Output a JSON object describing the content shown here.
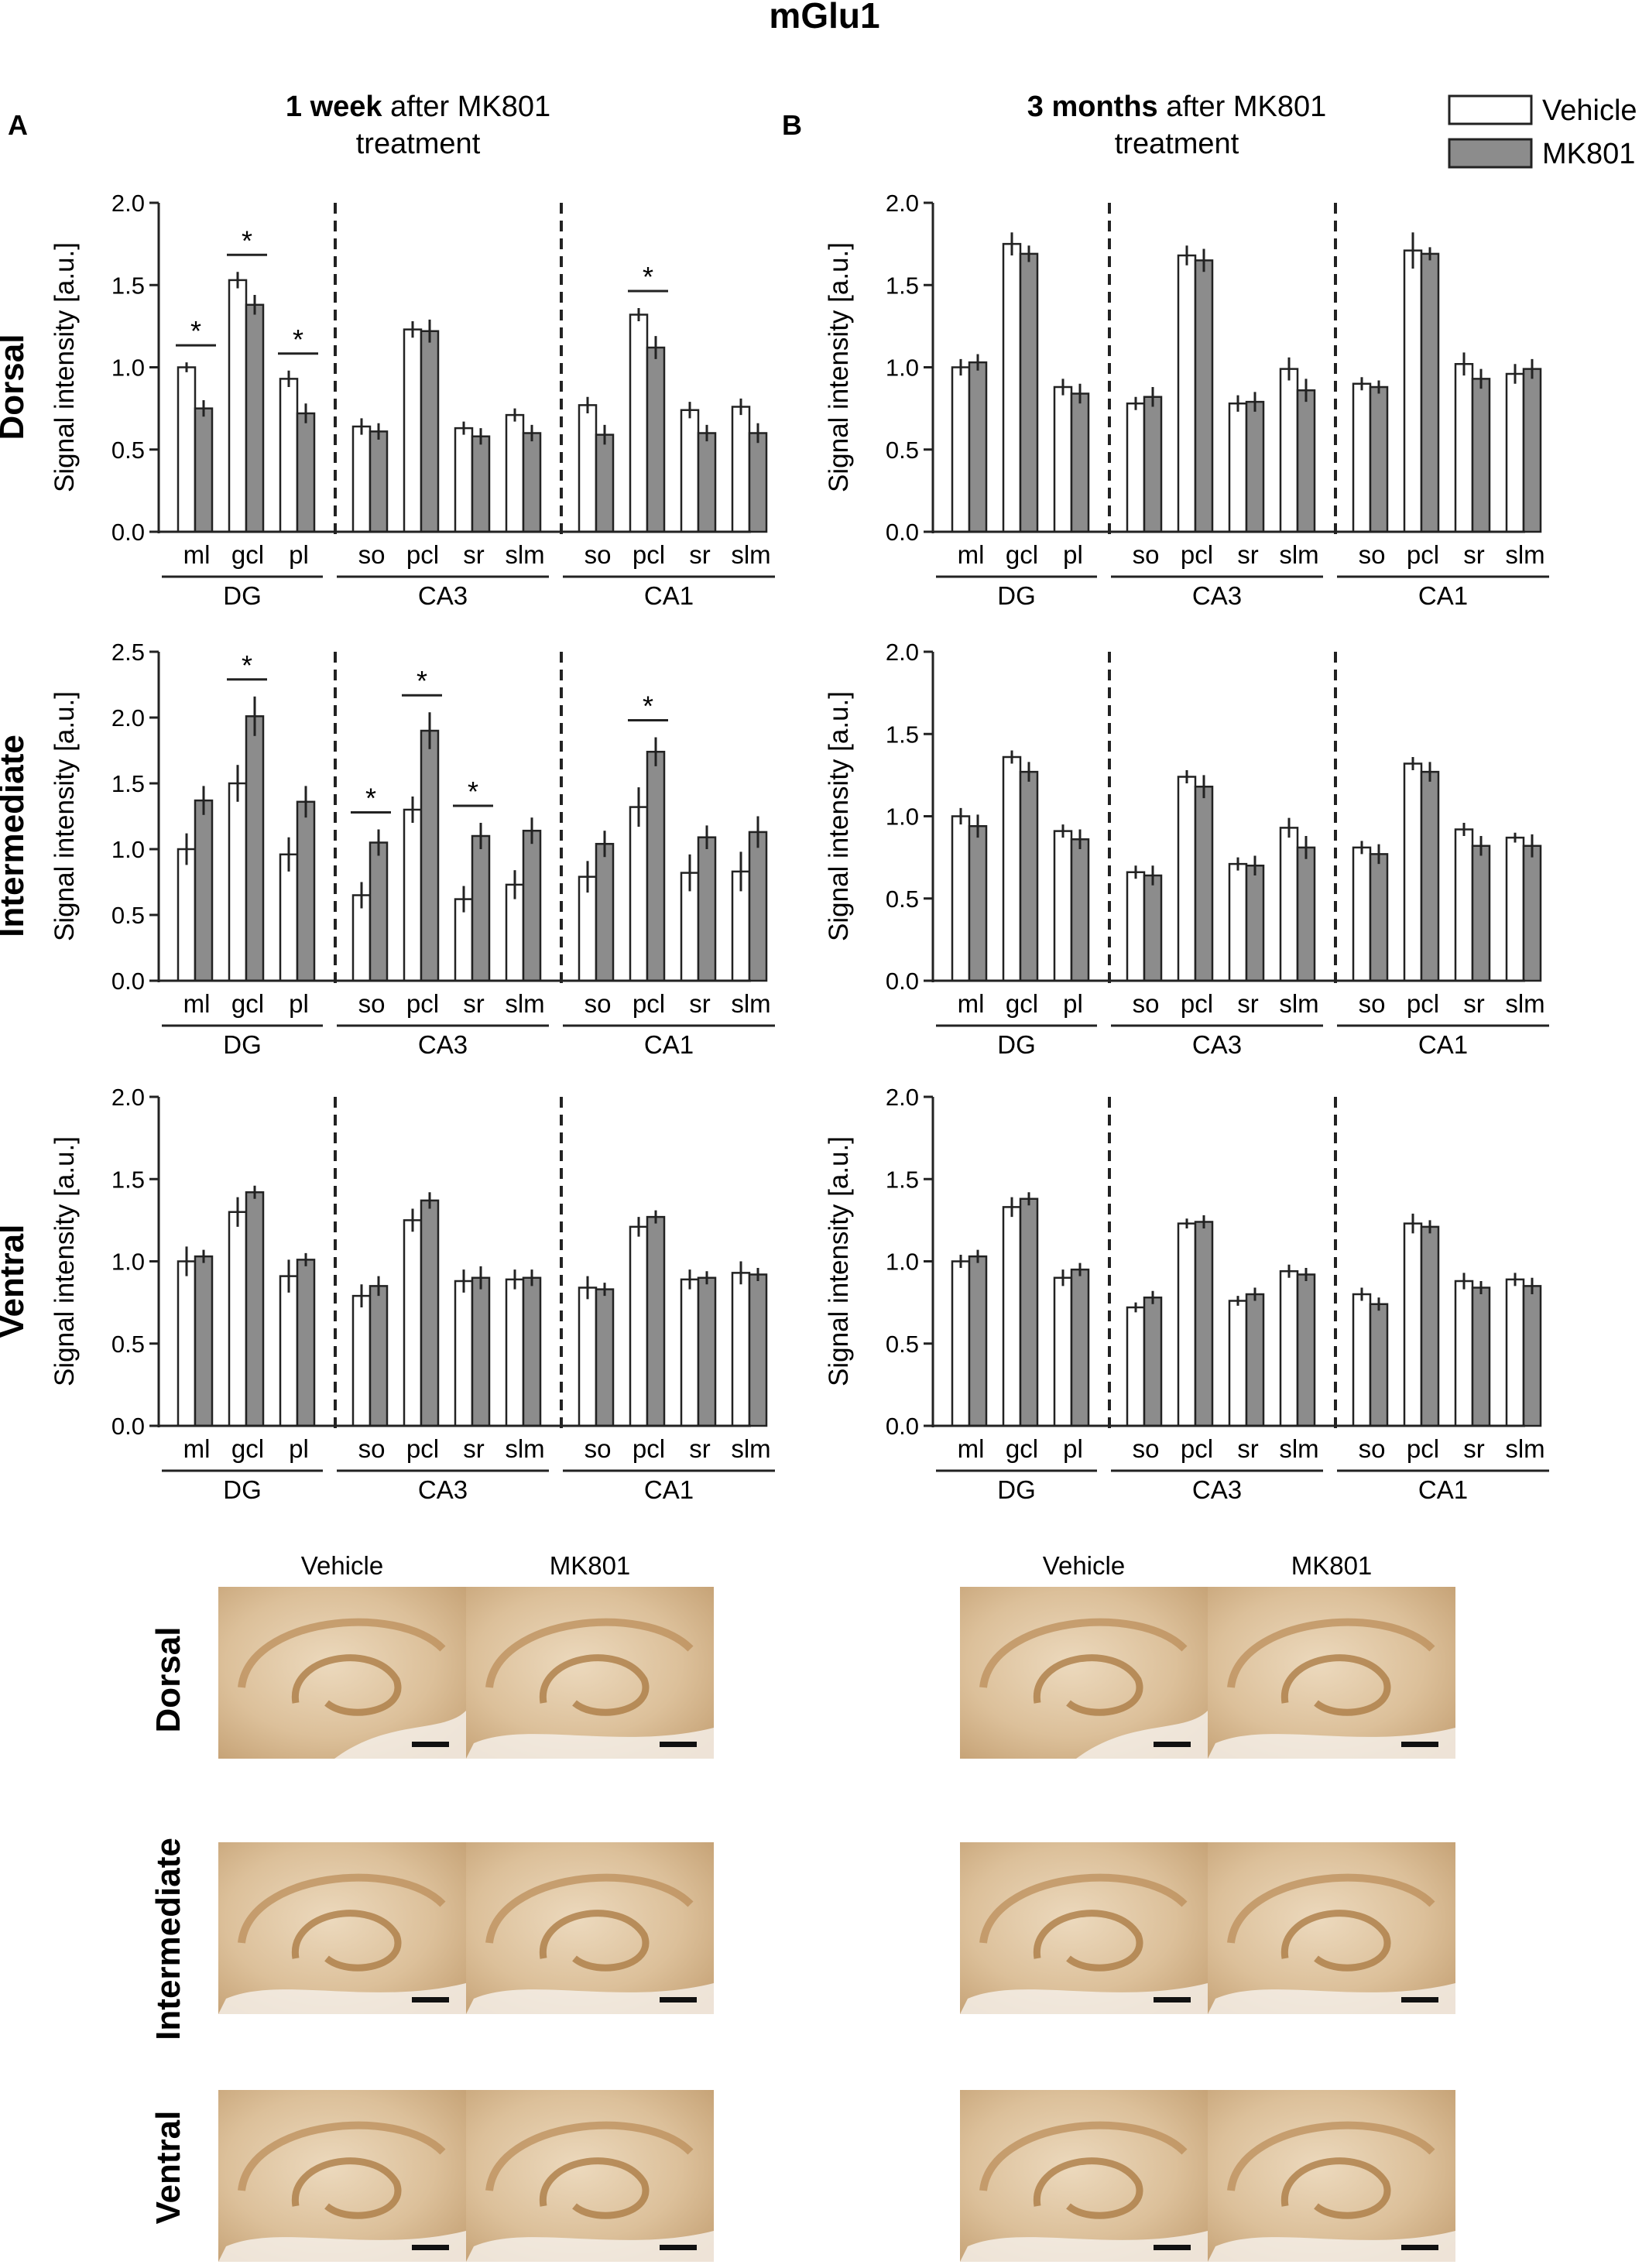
{
  "figure": {
    "title": "mGlu1",
    "panel_a": {
      "letter": "A",
      "title_bold": "1 week",
      "title_rest": " after MK801",
      "title_line2": "treatment"
    },
    "panel_b": {
      "letter": "B",
      "title_bold": "3 months",
      "title_rest": " after MK801",
      "title_line2": "treatment"
    },
    "legend": {
      "vehicle": "Vehicle",
      "mk801": "MK801"
    },
    "row_labels": [
      "Dorsal",
      "Intermediate",
      "Ventral"
    ],
    "images": {
      "vehicle_label": "Vehicle",
      "mk801_label": "MK801"
    },
    "colors": {
      "vehicle_fill": "#ffffff",
      "mk801_fill": "#8c8c8c",
      "stroke": "#222222",
      "tissue": "#d9b98f"
    }
  },
  "chart_data": [
    {
      "id": "A-dorsal",
      "type": "bar",
      "panel": "A",
      "row": "Dorsal",
      "ylabel": "Signal intensity [a.u.]",
      "ylim": [
        0,
        2.0
      ],
      "yticks": [
        "0.0",
        "0.5",
        "1.0",
        "1.5",
        "2.0"
      ],
      "groups": [
        {
          "name": "DG",
          "layers": [
            "ml",
            "gcl",
            "pl"
          ]
        },
        {
          "name": "CA3",
          "layers": [
            "so",
            "pcl",
            "sr",
            "slm"
          ]
        },
        {
          "name": "CA1",
          "layers": [
            "so",
            "pcl",
            "sr",
            "slm"
          ]
        }
      ],
      "series": [
        {
          "name": "Vehicle",
          "values": [
            1.0,
            1.53,
            0.93,
            0.64,
            1.23,
            0.63,
            0.71,
            0.77,
            1.32,
            0.74,
            0.76
          ],
          "errors": [
            0.03,
            0.05,
            0.05,
            0.05,
            0.05,
            0.04,
            0.04,
            0.05,
            0.04,
            0.05,
            0.05
          ]
        },
        {
          "name": "MK801",
          "values": [
            0.75,
            1.38,
            0.72,
            0.61,
            1.22,
            0.58,
            0.6,
            0.59,
            1.12,
            0.6,
            0.6
          ],
          "errors": [
            0.05,
            0.06,
            0.06,
            0.05,
            0.07,
            0.05,
            0.05,
            0.06,
            0.07,
            0.05,
            0.06
          ]
        }
      ],
      "significance": [
        {
          "index": 0,
          "label": "*"
        },
        {
          "index": 1,
          "label": "*"
        },
        {
          "index": 2,
          "label": "*"
        },
        {
          "index": 8,
          "label": "*"
        }
      ]
    },
    {
      "id": "A-intermediate",
      "type": "bar",
      "panel": "A",
      "row": "Intermediate",
      "ylabel": "Signal intensity [a.u.]",
      "ylim": [
        0,
        2.5
      ],
      "yticks": [
        "0.0",
        "0.5",
        "1.0",
        "1.5",
        "2.0",
        "2.5"
      ],
      "groups": [
        {
          "name": "DG",
          "layers": [
            "ml",
            "gcl",
            "pl"
          ]
        },
        {
          "name": "CA3",
          "layers": [
            "so",
            "pcl",
            "sr",
            "slm"
          ]
        },
        {
          "name": "CA1",
          "layers": [
            "so",
            "pcl",
            "sr",
            "slm"
          ]
        }
      ],
      "series": [
        {
          "name": "Vehicle",
          "values": [
            1.0,
            1.5,
            0.96,
            0.65,
            1.3,
            0.62,
            0.73,
            0.79,
            1.32,
            0.82,
            0.83
          ],
          "errors": [
            0.12,
            0.14,
            0.13,
            0.1,
            0.1,
            0.1,
            0.11,
            0.12,
            0.15,
            0.14,
            0.15
          ]
        },
        {
          "name": "MK801",
          "values": [
            1.37,
            2.01,
            1.36,
            1.05,
            1.9,
            1.1,
            1.14,
            1.04,
            1.74,
            1.09,
            1.13
          ],
          "errors": [
            0.11,
            0.15,
            0.12,
            0.1,
            0.14,
            0.1,
            0.1,
            0.1,
            0.11,
            0.09,
            0.12
          ]
        }
      ],
      "significance": [
        {
          "index": 1,
          "label": "*"
        },
        {
          "index": 3,
          "label": "*"
        },
        {
          "index": 4,
          "label": "*"
        },
        {
          "index": 5,
          "label": "*"
        },
        {
          "index": 8,
          "label": "*"
        }
      ]
    },
    {
      "id": "A-ventral",
      "type": "bar",
      "panel": "A",
      "row": "Ventral",
      "ylabel": "Signal intensity [a.u.]",
      "ylim": [
        0,
        2.0
      ],
      "yticks": [
        "0.0",
        "0.5",
        "1.0",
        "1.5",
        "2.0"
      ],
      "groups": [
        {
          "name": "DG",
          "layers": [
            "ml",
            "gcl",
            "pl"
          ]
        },
        {
          "name": "CA3",
          "layers": [
            "so",
            "pcl",
            "sr",
            "slm"
          ]
        },
        {
          "name": "CA1",
          "layers": [
            "so",
            "pcl",
            "sr",
            "slm"
          ]
        }
      ],
      "series": [
        {
          "name": "Vehicle",
          "values": [
            1.0,
            1.3,
            0.91,
            0.79,
            1.25,
            0.88,
            0.89,
            0.84,
            1.21,
            0.89,
            0.93
          ],
          "errors": [
            0.09,
            0.09,
            0.1,
            0.07,
            0.07,
            0.07,
            0.06,
            0.07,
            0.06,
            0.06,
            0.07
          ]
        },
        {
          "name": "MK801",
          "values": [
            1.03,
            1.42,
            1.01,
            0.85,
            1.37,
            0.9,
            0.9,
            0.83,
            1.27,
            0.9,
            0.92
          ],
          "errors": [
            0.04,
            0.04,
            0.04,
            0.06,
            0.05,
            0.07,
            0.05,
            0.04,
            0.04,
            0.04,
            0.04
          ]
        }
      ],
      "significance": []
    },
    {
      "id": "B-dorsal",
      "type": "bar",
      "panel": "B",
      "row": "Dorsal",
      "ylabel": "Signal intensity [a.u.]",
      "ylim": [
        0,
        2.0
      ],
      "yticks": [
        "0.0",
        "0.5",
        "1.0",
        "1.5",
        "2.0"
      ],
      "groups": [
        {
          "name": "DG",
          "layers": [
            "ml",
            "gcl",
            "pl"
          ]
        },
        {
          "name": "CA3",
          "layers": [
            "so",
            "pcl",
            "sr",
            "slm"
          ]
        },
        {
          "name": "CA1",
          "layers": [
            "so",
            "pcl",
            "sr",
            "slm"
          ]
        }
      ],
      "series": [
        {
          "name": "Vehicle",
          "values": [
            1.0,
            1.75,
            0.88,
            0.78,
            1.68,
            0.78,
            0.99,
            0.9,
            1.71,
            1.02,
            0.96
          ],
          "errors": [
            0.05,
            0.07,
            0.05,
            0.04,
            0.06,
            0.05,
            0.07,
            0.04,
            0.11,
            0.07,
            0.06
          ]
        },
        {
          "name": "MK801",
          "values": [
            1.03,
            1.69,
            0.84,
            0.82,
            1.65,
            0.79,
            0.86,
            0.88,
            1.69,
            0.93,
            0.99
          ],
          "errors": [
            0.05,
            0.05,
            0.06,
            0.06,
            0.07,
            0.06,
            0.07,
            0.04,
            0.04,
            0.06,
            0.06
          ]
        }
      ],
      "significance": []
    },
    {
      "id": "B-intermediate",
      "type": "bar",
      "panel": "B",
      "row": "Intermediate",
      "ylabel": "Signal intensity [a.u.]",
      "ylim": [
        0,
        2.0
      ],
      "yticks": [
        "0.0",
        "0.5",
        "1.0",
        "1.5",
        "2.0"
      ],
      "groups": [
        {
          "name": "DG",
          "layers": [
            "ml",
            "gcl",
            "pl"
          ]
        },
        {
          "name": "CA3",
          "layers": [
            "so",
            "pcl",
            "sr",
            "slm"
          ]
        },
        {
          "name": "CA1",
          "layers": [
            "so",
            "pcl",
            "sr",
            "slm"
          ]
        }
      ],
      "series": [
        {
          "name": "Vehicle",
          "values": [
            1.0,
            1.36,
            0.91,
            0.66,
            1.24,
            0.71,
            0.93,
            0.81,
            1.32,
            0.92,
            0.87
          ],
          "errors": [
            0.05,
            0.04,
            0.04,
            0.04,
            0.04,
            0.04,
            0.06,
            0.04,
            0.04,
            0.04,
            0.03
          ]
        },
        {
          "name": "MK801",
          "values": [
            0.94,
            1.27,
            0.86,
            0.64,
            1.18,
            0.7,
            0.81,
            0.77,
            1.27,
            0.82,
            0.82
          ],
          "errors": [
            0.07,
            0.06,
            0.06,
            0.06,
            0.07,
            0.06,
            0.07,
            0.06,
            0.06,
            0.06,
            0.07
          ]
        }
      ],
      "significance": []
    },
    {
      "id": "B-ventral",
      "type": "bar",
      "panel": "B",
      "row": "Ventral",
      "ylabel": "Signal intensity [a.u.]",
      "ylim": [
        0,
        2.0
      ],
      "yticks": [
        "0.0",
        "0.5",
        "1.0",
        "1.5",
        "2.0"
      ],
      "groups": [
        {
          "name": "DG",
          "layers": [
            "ml",
            "gcl",
            "pl"
          ]
        },
        {
          "name": "CA3",
          "layers": [
            "so",
            "pcl",
            "sr",
            "slm"
          ]
        },
        {
          "name": "CA1",
          "layers": [
            "so",
            "pcl",
            "sr",
            "slm"
          ]
        }
      ],
      "series": [
        {
          "name": "Vehicle",
          "values": [
            1.0,
            1.33,
            0.9,
            0.72,
            1.23,
            0.76,
            0.94,
            0.8,
            1.23,
            0.88,
            0.89
          ],
          "errors": [
            0.04,
            0.06,
            0.05,
            0.03,
            0.03,
            0.03,
            0.04,
            0.04,
            0.06,
            0.05,
            0.04
          ]
        },
        {
          "name": "MK801",
          "values": [
            1.03,
            1.38,
            0.95,
            0.78,
            1.24,
            0.8,
            0.92,
            0.74,
            1.21,
            0.84,
            0.85
          ],
          "errors": [
            0.04,
            0.04,
            0.04,
            0.04,
            0.04,
            0.04,
            0.04,
            0.04,
            0.04,
            0.04,
            0.05
          ]
        }
      ],
      "significance": []
    }
  ]
}
